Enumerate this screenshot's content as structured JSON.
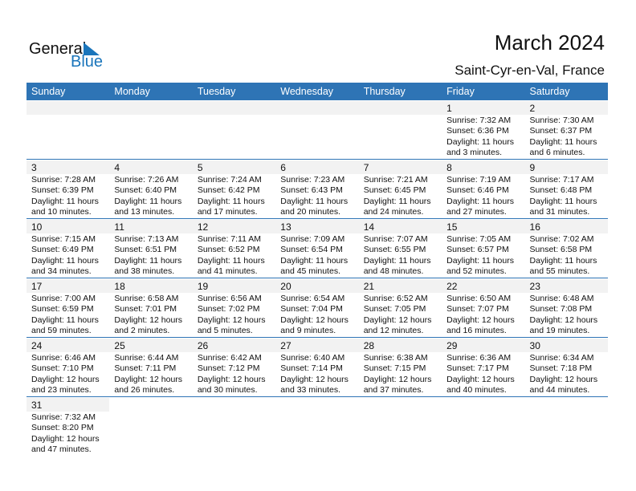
{
  "logo": {
    "text_general": "General",
    "text_blue": "Blue"
  },
  "title": "March 2024",
  "location": "Saint-Cyr-en-Val, France",
  "colors": {
    "header": "#2e74b5",
    "date_band": "#f2f2f2",
    "logo_blue": "#1a75bb"
  },
  "weekdays": [
    "Sunday",
    "Monday",
    "Tuesday",
    "Wednesday",
    "Thursday",
    "Friday",
    "Saturday"
  ],
  "weeks": [
    [
      null,
      null,
      null,
      null,
      null,
      {
        "day": "1",
        "sunrise": "Sunrise: 7:32 AM",
        "sunset": "Sunset: 6:36 PM",
        "daylight": "Daylight: 11 hours",
        "minutes": "and 3 minutes."
      },
      {
        "day": "2",
        "sunrise": "Sunrise: 7:30 AM",
        "sunset": "Sunset: 6:37 PM",
        "daylight": "Daylight: 11 hours",
        "minutes": "and 6 minutes."
      }
    ],
    [
      {
        "day": "3",
        "sunrise": "Sunrise: 7:28 AM",
        "sunset": "Sunset: 6:39 PM",
        "daylight": "Daylight: 11 hours",
        "minutes": "and 10 minutes."
      },
      {
        "day": "4",
        "sunrise": "Sunrise: 7:26 AM",
        "sunset": "Sunset: 6:40 PM",
        "daylight": "Daylight: 11 hours",
        "minutes": "and 13 minutes."
      },
      {
        "day": "5",
        "sunrise": "Sunrise: 7:24 AM",
        "sunset": "Sunset: 6:42 PM",
        "daylight": "Daylight: 11 hours",
        "minutes": "and 17 minutes."
      },
      {
        "day": "6",
        "sunrise": "Sunrise: 7:23 AM",
        "sunset": "Sunset: 6:43 PM",
        "daylight": "Daylight: 11 hours",
        "minutes": "and 20 minutes."
      },
      {
        "day": "7",
        "sunrise": "Sunrise: 7:21 AM",
        "sunset": "Sunset: 6:45 PM",
        "daylight": "Daylight: 11 hours",
        "minutes": "and 24 minutes."
      },
      {
        "day": "8",
        "sunrise": "Sunrise: 7:19 AM",
        "sunset": "Sunset: 6:46 PM",
        "daylight": "Daylight: 11 hours",
        "minutes": "and 27 minutes."
      },
      {
        "day": "9",
        "sunrise": "Sunrise: 7:17 AM",
        "sunset": "Sunset: 6:48 PM",
        "daylight": "Daylight: 11 hours",
        "minutes": "and 31 minutes."
      }
    ],
    [
      {
        "day": "10",
        "sunrise": "Sunrise: 7:15 AM",
        "sunset": "Sunset: 6:49 PM",
        "daylight": "Daylight: 11 hours",
        "minutes": "and 34 minutes."
      },
      {
        "day": "11",
        "sunrise": "Sunrise: 7:13 AM",
        "sunset": "Sunset: 6:51 PM",
        "daylight": "Daylight: 11 hours",
        "minutes": "and 38 minutes."
      },
      {
        "day": "12",
        "sunrise": "Sunrise: 7:11 AM",
        "sunset": "Sunset: 6:52 PM",
        "daylight": "Daylight: 11 hours",
        "minutes": "and 41 minutes."
      },
      {
        "day": "13",
        "sunrise": "Sunrise: 7:09 AM",
        "sunset": "Sunset: 6:54 PM",
        "daylight": "Daylight: 11 hours",
        "minutes": "and 45 minutes."
      },
      {
        "day": "14",
        "sunrise": "Sunrise: 7:07 AM",
        "sunset": "Sunset: 6:55 PM",
        "daylight": "Daylight: 11 hours",
        "minutes": "and 48 minutes."
      },
      {
        "day": "15",
        "sunrise": "Sunrise: 7:05 AM",
        "sunset": "Sunset: 6:57 PM",
        "daylight": "Daylight: 11 hours",
        "minutes": "and 52 minutes."
      },
      {
        "day": "16",
        "sunrise": "Sunrise: 7:02 AM",
        "sunset": "Sunset: 6:58 PM",
        "daylight": "Daylight: 11 hours",
        "minutes": "and 55 minutes."
      }
    ],
    [
      {
        "day": "17",
        "sunrise": "Sunrise: 7:00 AM",
        "sunset": "Sunset: 6:59 PM",
        "daylight": "Daylight: 11 hours",
        "minutes": "and 59 minutes."
      },
      {
        "day": "18",
        "sunrise": "Sunrise: 6:58 AM",
        "sunset": "Sunset: 7:01 PM",
        "daylight": "Daylight: 12 hours",
        "minutes": "and 2 minutes."
      },
      {
        "day": "19",
        "sunrise": "Sunrise: 6:56 AM",
        "sunset": "Sunset: 7:02 PM",
        "daylight": "Daylight: 12 hours",
        "minutes": "and 5 minutes."
      },
      {
        "day": "20",
        "sunrise": "Sunrise: 6:54 AM",
        "sunset": "Sunset: 7:04 PM",
        "daylight": "Daylight: 12 hours",
        "minutes": "and 9 minutes."
      },
      {
        "day": "21",
        "sunrise": "Sunrise: 6:52 AM",
        "sunset": "Sunset: 7:05 PM",
        "daylight": "Daylight: 12 hours",
        "minutes": "and 12 minutes."
      },
      {
        "day": "22",
        "sunrise": "Sunrise: 6:50 AM",
        "sunset": "Sunset: 7:07 PM",
        "daylight": "Daylight: 12 hours",
        "minutes": "and 16 minutes."
      },
      {
        "day": "23",
        "sunrise": "Sunrise: 6:48 AM",
        "sunset": "Sunset: 7:08 PM",
        "daylight": "Daylight: 12 hours",
        "minutes": "and 19 minutes."
      }
    ],
    [
      {
        "day": "24",
        "sunrise": "Sunrise: 6:46 AM",
        "sunset": "Sunset: 7:10 PM",
        "daylight": "Daylight: 12 hours",
        "minutes": "and 23 minutes."
      },
      {
        "day": "25",
        "sunrise": "Sunrise: 6:44 AM",
        "sunset": "Sunset: 7:11 PM",
        "daylight": "Daylight: 12 hours",
        "minutes": "and 26 minutes."
      },
      {
        "day": "26",
        "sunrise": "Sunrise: 6:42 AM",
        "sunset": "Sunset: 7:12 PM",
        "daylight": "Daylight: 12 hours",
        "minutes": "and 30 minutes."
      },
      {
        "day": "27",
        "sunrise": "Sunrise: 6:40 AM",
        "sunset": "Sunset: 7:14 PM",
        "daylight": "Daylight: 12 hours",
        "minutes": "and 33 minutes."
      },
      {
        "day": "28",
        "sunrise": "Sunrise: 6:38 AM",
        "sunset": "Sunset: 7:15 PM",
        "daylight": "Daylight: 12 hours",
        "minutes": "and 37 minutes."
      },
      {
        "day": "29",
        "sunrise": "Sunrise: 6:36 AM",
        "sunset": "Sunset: 7:17 PM",
        "daylight": "Daylight: 12 hours",
        "minutes": "and 40 minutes."
      },
      {
        "day": "30",
        "sunrise": "Sunrise: 6:34 AM",
        "sunset": "Sunset: 7:18 PM",
        "daylight": "Daylight: 12 hours",
        "minutes": "and 44 minutes."
      }
    ],
    [
      {
        "day": "31",
        "sunrise": "Sunrise: 7:32 AM",
        "sunset": "Sunset: 8:20 PM",
        "daylight": "Daylight: 12 hours",
        "minutes": "and 47 minutes."
      }
    ]
  ]
}
